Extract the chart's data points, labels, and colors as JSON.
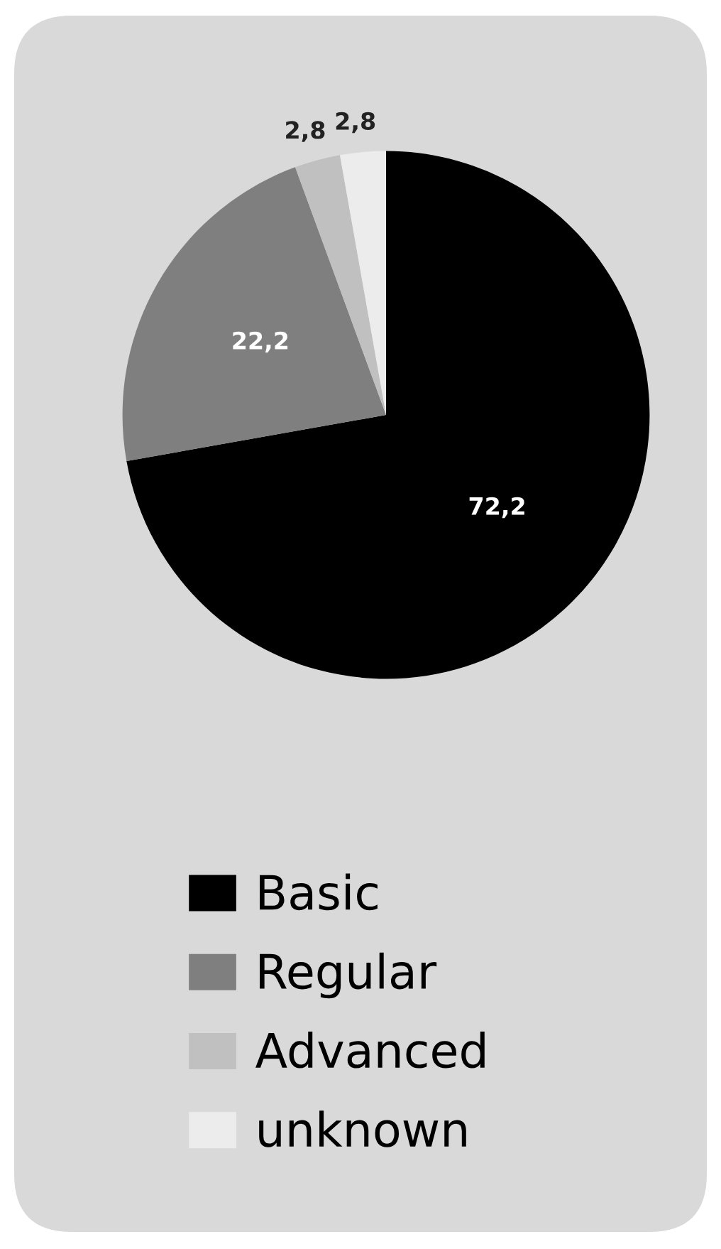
{
  "chart_data": {
    "type": "pie",
    "categories": [
      "Basic",
      "Regular",
      "Advanced",
      "unknown"
    ],
    "values": [
      72.2,
      22.2,
      2.8,
      2.8
    ],
    "value_labels": [
      "72,2",
      "22,2",
      "2,8",
      "2,8"
    ],
    "colors": [
      "#000000",
      "#7f7f7f",
      "#c0c0c0",
      "#ececec"
    ],
    "legend": "bottom"
  }
}
